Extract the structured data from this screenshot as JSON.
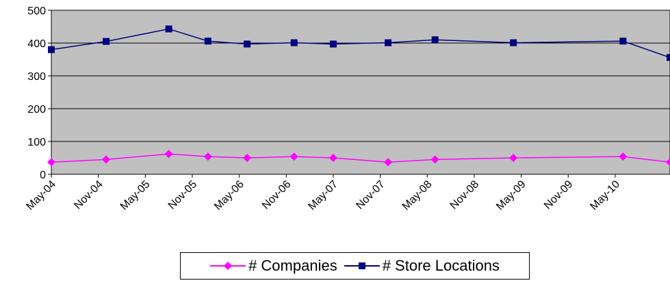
{
  "chart_data": {
    "type": "line",
    "title": "",
    "xlabel": "",
    "ylabel": "",
    "ylim": [
      0,
      500
    ],
    "y_ticks": [
      "0",
      "100",
      "200",
      "300",
      "400",
      "500"
    ],
    "x_tick_labels": [
      "May-04",
      "Nov-04",
      "May-05",
      "Nov-05",
      "May-06",
      "Nov-06",
      "May-07",
      "Nov-07",
      "May-08",
      "Nov-08",
      "May-09",
      "Nov-09",
      "May-10"
    ],
    "x_range": [
      "2004-05-01",
      "2010-12-01"
    ],
    "grid": true,
    "plot_background": "#c0c0c0",
    "legend_position": "bottom",
    "series": [
      {
        "name": "# Companies",
        "color": "#ff00ff",
        "marker": "diamond",
        "dates": [
          "2004-05-01",
          "2004-12-01",
          "2005-08-01",
          "2006-01-01",
          "2006-06-01",
          "2006-12-01",
          "2007-05-01",
          "2007-12-01",
          "2008-06-01",
          "2009-04-01",
          "2010-06-01",
          "2010-12-01"
        ],
        "values": [
          37,
          45,
          62,
          54,
          50,
          54,
          50,
          37,
          45,
          50,
          54,
          37
        ]
      },
      {
        "name": "# Store Locations",
        "color": "#000080",
        "marker": "square",
        "dates": [
          "2004-05-01",
          "2004-12-01",
          "2005-08-01",
          "2006-01-01",
          "2006-06-01",
          "2006-12-01",
          "2007-05-01",
          "2007-12-01",
          "2008-06-01",
          "2009-04-01",
          "2010-06-01",
          "2010-12-01"
        ],
        "values": [
          380,
          405,
          443,
          406,
          397,
          401,
          397,
          401,
          410,
          401,
          406,
          356
        ]
      }
    ]
  }
}
